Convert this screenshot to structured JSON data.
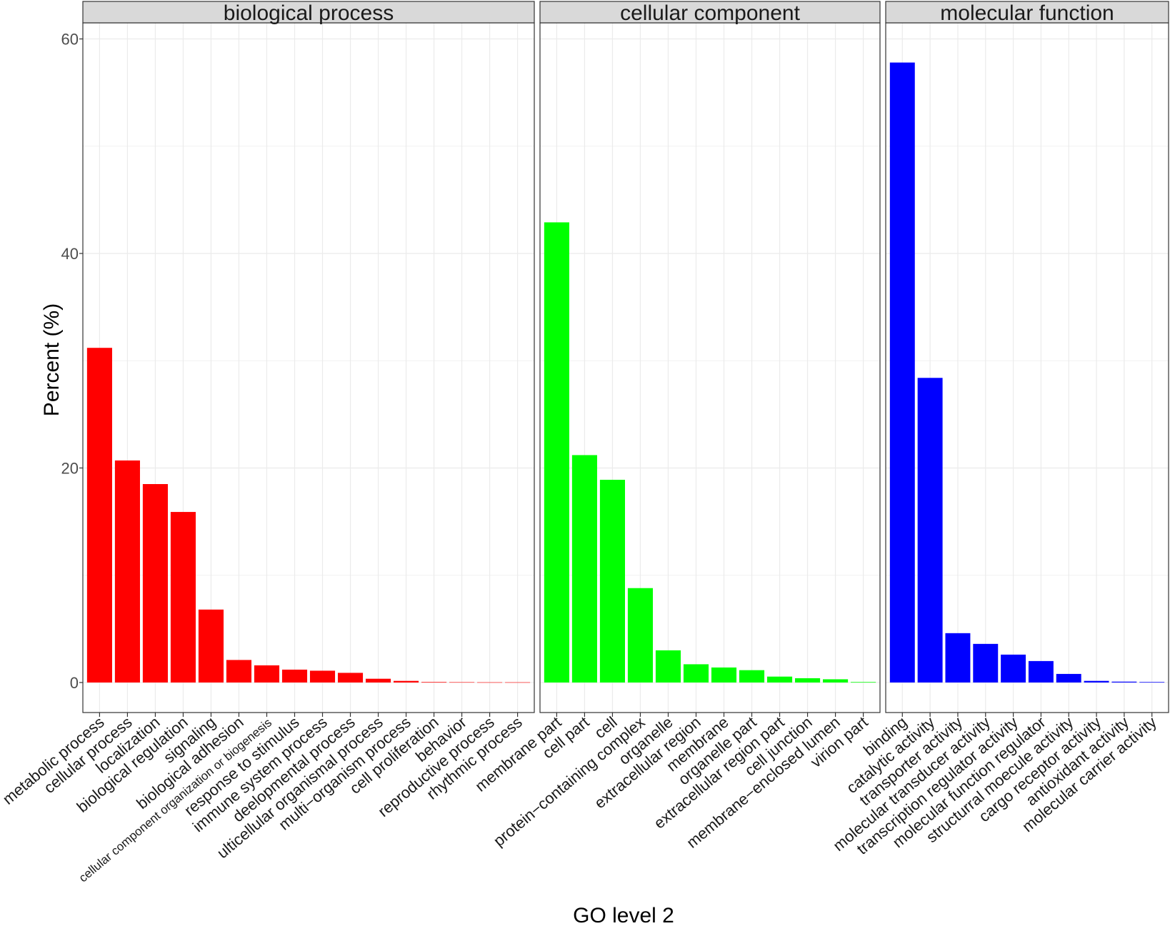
{
  "chart_data": {
    "type": "bar",
    "xlabel": "GO level 2",
    "ylabel": "Percent (%)",
    "ylim": [
      -2.8,
      61.5
    ],
    "yticks": [
      0,
      20,
      40,
      60
    ],
    "grid": true,
    "legend": "none",
    "facets": [
      {
        "name": "biological process",
        "color": "#FF0000",
        "categories": [
          "metabolic process",
          "cellular process",
          "localization",
          "biological regulation",
          "signaling",
          "biological adhesion",
          "cellular component organization or biogenesis",
          "response to stimulus",
          "immune system process",
          "deelopmental process",
          "ulticellular organismal process",
          "multi−organism process",
          "cell proliferation",
          "behavior",
          "reproductive process",
          "rhythmic process"
        ],
        "values": [
          31.2,
          20.7,
          18.5,
          15.9,
          6.8,
          2.1,
          1.6,
          1.2,
          1.1,
          0.9,
          0.35,
          0.15,
          0.05,
          0.03,
          0.02,
          0.02
        ]
      },
      {
        "name": "cellular component",
        "color": "#00FF00",
        "categories": [
          "membrane part",
          "cell part",
          "cell",
          "protein−containing complex",
          "organelle",
          "extracellular region",
          "membrane",
          "organelle part",
          "extracellular region part",
          "cell junction",
          "membrane−enclosed lumen",
          "virion part"
        ],
        "values": [
          42.9,
          21.2,
          18.9,
          8.8,
          3.0,
          1.7,
          1.4,
          1.15,
          0.55,
          0.4,
          0.3,
          0.05
        ]
      },
      {
        "name": "molecular function",
        "color": "#0000FF",
        "categories": [
          "binding",
          "catalytic activity",
          "transporter activity",
          "molecular transducer activity",
          "transcription regulator activity",
          "molecular function regulator",
          "structurral moecule activity",
          "cargo receptor activity",
          "antioxidant activity",
          "molecular carrier activity"
        ],
        "values": [
          57.8,
          28.4,
          4.6,
          3.6,
          2.6,
          2.0,
          0.8,
          0.15,
          0.08,
          0.05
        ]
      }
    ]
  }
}
